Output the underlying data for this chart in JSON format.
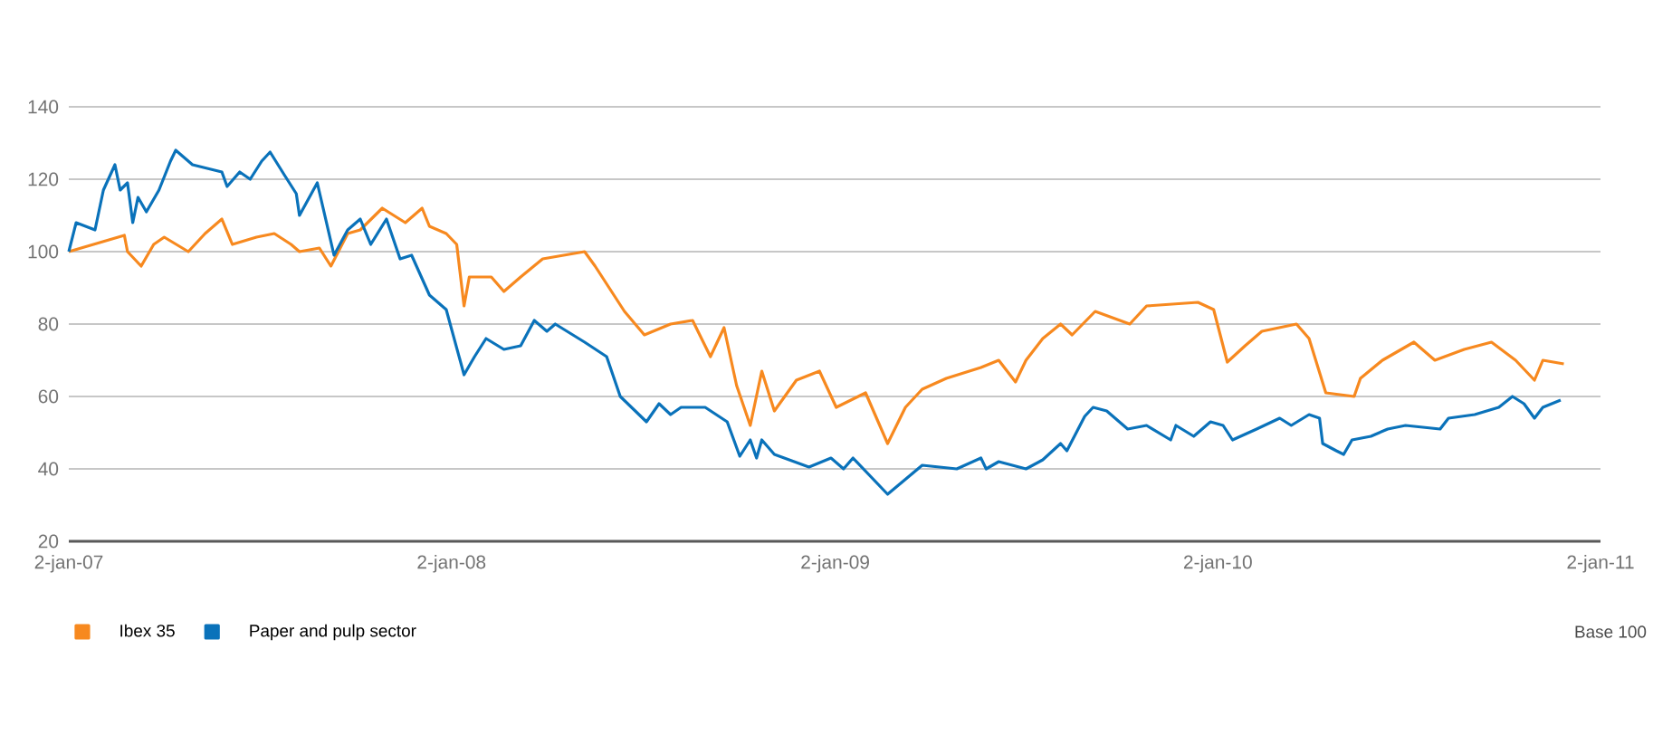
{
  "chart_data": {
    "type": "line",
    "xlim": [
      "2007-01-02",
      "2011-01-02"
    ],
    "xticks": [
      {
        "value": "2007-01-02",
        "label": "2-jan-07"
      },
      {
        "value": "2008-01-02",
        "label": "2-jan-08"
      },
      {
        "value": "2009-01-02",
        "label": "2-jan-09"
      },
      {
        "value": "2010-01-02",
        "label": "2-jan-10"
      },
      {
        "value": "2011-01-02",
        "label": "2-jan-11"
      }
    ],
    "ylim": [
      20,
      140
    ],
    "yticks": [
      20,
      40,
      60,
      80,
      100,
      120,
      140
    ],
    "grid": "y",
    "legend": "bottom",
    "annotations": [
      "Base 100"
    ],
    "series": [
      {
        "name": "Ibex 35",
        "color": "#f7891f",
        "x": [
          "2007-01-02",
          "2007-02-24",
          "2007-02-27",
          "2007-03-12",
          "2007-03-24",
          "2007-04-03",
          "2007-04-26",
          "2007-05-12",
          "2007-05-28",
          "2007-06-07",
          "2007-06-30",
          "2007-07-17",
          "2007-08-02",
          "2007-08-10",
          "2007-08-29",
          "2007-09-09",
          "2007-09-25",
          "2007-10-07",
          "2007-10-28",
          "2007-11-19",
          "2007-12-05",
          "2007-12-12",
          "2007-12-28",
          "2008-01-07",
          "2008-01-14",
          "2008-01-19",
          "2008-02-09",
          "2008-02-21",
          "2008-03-08",
          "2008-03-29",
          "2008-05-08",
          "2008-05-18",
          "2008-06-15",
          "2008-07-04",
          "2008-07-29",
          "2008-08-19",
          "2008-09-05",
          "2008-09-18",
          "2008-09-30",
          "2008-10-13",
          "2008-10-24",
          "2008-11-05",
          "2008-11-26",
          "2008-12-18",
          "2009-01-03",
          "2009-01-31",
          "2009-02-21",
          "2009-03-10",
          "2009-03-26",
          "2009-04-18",
          "2009-05-21",
          "2009-06-07",
          "2009-06-23",
          "2009-07-03",
          "2009-07-19",
          "2009-08-05",
          "2009-08-16",
          "2009-09-07",
          "2009-10-10",
          "2009-10-26",
          "2009-12-14",
          "2009-12-29",
          "2010-01-11",
          "2010-01-28",
          "2010-02-13",
          "2010-03-18",
          "2010-03-30",
          "2010-04-15",
          "2010-05-12",
          "2010-05-18",
          "2010-06-08",
          "2010-07-08",
          "2010-07-28",
          "2010-08-25",
          "2010-09-20",
          "2010-10-13",
          "2010-10-31",
          "2010-11-08",
          "2010-11-28"
        ],
        "values": [
          100,
          104.5,
          100,
          96,
          102,
          104,
          100,
          105,
          109,
          102,
          104,
          105,
          102,
          100,
          101,
          96,
          105,
          106,
          112,
          108,
          112,
          107,
          105,
          102,
          85,
          93,
          93,
          89,
          93,
          98,
          100,
          96,
          83.5,
          77,
          80,
          81,
          71,
          79,
          63,
          52,
          67,
          56,
          64.5,
          67,
          57,
          61,
          47,
          57,
          62,
          65,
          68,
          70,
          64,
          70,
          76,
          80,
          77,
          83.5,
          80,
          85,
          86,
          84,
          69.5,
          74,
          78,
          80,
          76,
          61,
          60,
          65,
          70,
          75,
          70,
          73,
          75,
          70,
          64.5,
          70,
          69
        ]
      },
      {
        "name": "Paper and pulp sector",
        "color": "#0a72ba",
        "x": [
          "2007-01-02",
          "2007-01-09",
          "2007-01-27",
          "2007-02-04",
          "2007-02-15",
          "2007-02-20",
          "2007-02-27",
          "2007-03-04",
          "2007-03-09",
          "2007-03-17",
          "2007-03-29",
          "2007-04-09",
          "2007-04-14",
          "2007-04-30",
          "2007-05-28",
          "2007-06-02",
          "2007-06-14",
          "2007-06-24",
          "2007-07-05",
          "2007-07-13",
          "2007-07-27",
          "2007-08-07",
          "2007-08-10",
          "2007-08-27",
          "2007-09-04",
          "2007-09-12",
          "2007-09-25",
          "2007-10-07",
          "2007-10-17",
          "2007-11-01",
          "2007-11-14",
          "2007-11-25",
          "2007-12-12",
          "2007-12-28",
          "2008-01-14",
          "2008-01-24",
          "2008-02-04",
          "2008-02-21",
          "2008-03-08",
          "2008-03-21",
          "2008-04-02",
          "2008-04-10",
          "2008-05-08",
          "2008-05-29",
          "2008-06-11",
          "2008-07-06",
          "2008-07-18",
          "2008-07-29",
          "2008-08-08",
          "2008-08-31",
          "2008-09-21",
          "2008-10-03",
          "2008-10-13",
          "2008-10-19",
          "2008-10-24",
          "2008-11-05",
          "2008-12-08",
          "2008-12-29",
          "2009-01-10",
          "2009-01-19",
          "2009-02-21",
          "2009-03-26",
          "2009-04-28",
          "2009-05-21",
          "2009-05-26",
          "2009-06-07",
          "2009-07-03",
          "2009-07-19",
          "2009-08-05",
          "2009-08-11",
          "2009-08-28",
          "2009-09-05",
          "2009-09-18",
          "2009-10-08",
          "2009-10-26",
          "2009-11-18",
          "2009-11-23",
          "2009-12-10",
          "2009-12-26",
          "2010-01-07",
          "2010-01-16",
          "2010-02-08",
          "2010-03-02",
          "2010-03-13",
          "2010-03-30",
          "2010-04-09",
          "2010-04-12",
          "2010-04-25",
          "2010-05-02",
          "2010-05-10",
          "2010-05-28",
          "2010-06-13",
          "2010-06-30",
          "2010-08-02",
          "2010-08-10",
          "2010-09-04",
          "2010-09-27",
          "2010-10-10",
          "2010-10-21",
          "2010-10-31",
          "2010-11-08",
          "2010-11-25"
        ],
        "values": [
          100,
          108,
          106,
          117,
          124,
          117,
          119,
          108,
          115,
          111,
          117,
          125,
          128,
          124,
          122,
          118,
          122,
          120,
          125,
          127.5,
          121,
          116,
          110,
          119,
          109,
          99,
          106,
          109,
          102,
          109,
          98,
          99,
          88,
          84,
          66,
          71,
          76,
          73,
          74,
          81,
          78,
          80,
          75,
          71,
          60,
          53,
          58,
          55,
          57,
          57,
          53,
          43.5,
          48,
          43,
          48,
          44,
          40.5,
          43,
          40,
          43,
          33,
          41,
          40,
          43,
          40,
          42,
          40,
          42.5,
          47,
          45,
          54.5,
          57,
          56,
          51,
          52,
          48,
          52,
          49,
          53,
          52,
          48,
          51,
          54,
          52,
          55,
          54,
          47,
          45,
          44,
          48,
          49,
          51,
          52,
          51,
          54,
          55,
          57,
          60,
          58,
          54,
          57,
          59
        ]
      }
    ]
  }
}
